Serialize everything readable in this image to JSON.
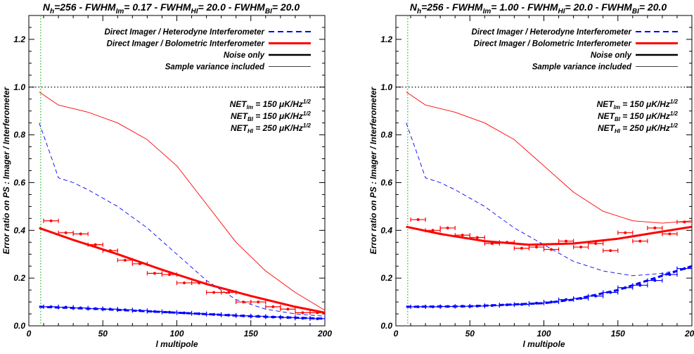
{
  "chart_data": [
    {
      "type": "line",
      "title": "N_h=256 - FWHM_Im= 0.17 - FWHM_HI= 20.0 - FWHM_BI= 20.0",
      "title_parts": [
        {
          "t": "N",
          "s": 0
        },
        {
          "t": "h",
          "s": -1
        },
        {
          "t": "=256 - FWHM",
          "s": 0
        },
        {
          "t": "Im",
          "s": -1
        },
        {
          "t": "= 0.17 - FWHM",
          "s": 0
        },
        {
          "t": "HI",
          "s": -1
        },
        {
          "t": "= 20.0 - FWHM",
          "s": 0
        },
        {
          "t": "BI",
          "s": -1
        },
        {
          "t": "= 20.0",
          "s": 0
        }
      ],
      "xlabel": "l multipole",
      "ylabel": "Error ratio on PS : Imager / Interferometer",
      "xlim": [
        0,
        200
      ],
      "ylim": [
        0,
        1.3
      ],
      "xticks": [
        0,
        50,
        100,
        150,
        200
      ],
      "xtick_labels": [
        "0",
        "50",
        "100",
        "150",
        "200"
      ],
      "yticks": [
        0.0,
        0.2,
        0.4,
        0.6,
        0.8,
        1.0,
        1.2
      ],
      "ytick_labels": [
        "0.0",
        "0.2",
        "0.4",
        "0.6",
        "0.8",
        "1.0",
        "1.2"
      ],
      "legend_position": "top-right",
      "legend": [
        {
          "label": "Direct Imager / Heterodyne Interferometer",
          "color": "#0000ff",
          "style": "dashed",
          "width": 2
        },
        {
          "label": "Direct Imager / Bolometric Interferometer",
          "color": "#ff0000",
          "style": "solid",
          "width": 3
        },
        {
          "label": "Noise only",
          "color": "#000000",
          "style": "solid",
          "width": 2.5
        },
        {
          "label": "Sample variance included",
          "color": "#000000",
          "style": "solid",
          "width": 0.8
        }
      ],
      "net_lines": [
        [
          {
            "t": "NET",
            "s": 0
          },
          {
            "t": "Im",
            "s": -1
          },
          {
            "t": " = 150 μK/Hz",
            "s": 0
          },
          {
            "t": "1/2",
            "s": 1
          }
        ],
        [
          {
            "t": "NET",
            "s": 0
          },
          {
            "t": "BI",
            "s": -1
          },
          {
            "t": " = 150 μK/Hz",
            "s": 0
          },
          {
            "t": "1/2",
            "s": 1
          }
        ],
        [
          {
            "t": "NET",
            "s": 0
          },
          {
            "t": "HI",
            "s": -1
          },
          {
            "t": " = 250 μK/Hz",
            "s": 0
          },
          {
            "t": "1/2",
            "s": 1
          }
        ]
      ],
      "reference_lines": {
        "hline_y": 1.0,
        "vline_x": 8
      },
      "series": [
        {
          "kind": "line",
          "color": "#ff0000",
          "width": 0.9,
          "dash": false,
          "x": [
            7,
            20,
            40,
            60,
            80,
            100,
            120,
            140,
            160,
            180,
            200
          ],
          "y": [
            0.98,
            0.925,
            0.895,
            0.85,
            0.78,
            0.67,
            0.51,
            0.35,
            0.23,
            0.14,
            0.065
          ]
        },
        {
          "kind": "line",
          "color": "#0000ff",
          "width": 0.9,
          "dash": true,
          "x": [
            7,
            15,
            20,
            30,
            40,
            60,
            80,
            100,
            120,
            140,
            160,
            180,
            200
          ],
          "y": [
            0.85,
            0.71,
            0.62,
            0.6,
            0.57,
            0.5,
            0.41,
            0.3,
            0.19,
            0.11,
            0.07,
            0.05,
            0.04
          ]
        },
        {
          "kind": "line",
          "color": "#ff0000",
          "width": 3,
          "dash": false,
          "x": [
            7,
            30,
            60,
            90,
            120,
            150,
            180,
            200
          ],
          "y": [
            0.41,
            0.36,
            0.3,
            0.235,
            0.175,
            0.125,
            0.08,
            0.055
          ]
        },
        {
          "kind": "line",
          "color": "#0000ff",
          "width": 3,
          "dash": true,
          "x": [
            7,
            50,
            100,
            150,
            200
          ],
          "y": [
            0.08,
            0.07,
            0.055,
            0.04,
            0.03
          ]
        },
        {
          "kind": "errorbar",
          "color": "#ff0000",
          "halfwidth": 5,
          "x": [
            15,
            25,
            35,
            45,
            55,
            65,
            75,
            85,
            95,
            105,
            115,
            125,
            135,
            145,
            155,
            165,
            175,
            185,
            195
          ],
          "y": [
            0.44,
            0.39,
            0.385,
            0.34,
            0.315,
            0.275,
            0.26,
            0.22,
            0.215,
            0.18,
            0.18,
            0.14,
            0.14,
            0.1,
            0.1,
            0.08,
            0.07,
            0.055,
            0.055
          ]
        },
        {
          "kind": "errorbar",
          "color": "#0000ff",
          "halfwidth": 5,
          "x": [
            15,
            25,
            35,
            45,
            55,
            65,
            75,
            85,
            95,
            105,
            115,
            125,
            135,
            145,
            155,
            165,
            175,
            185,
            195
          ],
          "y": [
            0.08,
            0.078,
            0.075,
            0.072,
            0.07,
            0.067,
            0.064,
            0.06,
            0.057,
            0.054,
            0.051,
            0.048,
            0.045,
            0.042,
            0.04,
            0.037,
            0.035,
            0.032,
            0.03
          ]
        }
      ]
    },
    {
      "type": "line",
      "title": "N_h=256 - FWHM_Im= 1.00 - FWHM_HI= 20.0 - FWHM_BI= 20.0",
      "title_parts": [
        {
          "t": "N",
          "s": 0
        },
        {
          "t": "h",
          "s": -1
        },
        {
          "t": "=256 - FWHM",
          "s": 0
        },
        {
          "t": "Im",
          "s": -1
        },
        {
          "t": "= 1.00 - FWHM",
          "s": 0
        },
        {
          "t": "HI",
          "s": -1
        },
        {
          "t": "= 20.0 - FWHM",
          "s": 0
        },
        {
          "t": "BI",
          "s": -1
        },
        {
          "t": "= 20.0",
          "s": 0
        }
      ],
      "xlabel": "l multipole",
      "ylabel": "Error ratio on PS : Imager / Interferometer",
      "xlim": [
        0,
        200
      ],
      "ylim": [
        0,
        1.3
      ],
      "xticks": [
        0,
        50,
        100,
        150,
        200
      ],
      "xtick_labels": [
        "0",
        "50",
        "100",
        "150",
        "200"
      ],
      "yticks": [
        0.0,
        0.2,
        0.4,
        0.6,
        0.8,
        1.0,
        1.2
      ],
      "ytick_labels": [
        "0.0",
        "0.2",
        "0.4",
        "0.6",
        "0.8",
        "1.0",
        "1.2"
      ],
      "legend_position": "top-right",
      "legend": [
        {
          "label": "Direct Imager / Heterodyne Interferometer",
          "color": "#0000ff",
          "style": "dashed",
          "width": 2
        },
        {
          "label": "Direct Imager / Bolometric Interferometer",
          "color": "#ff0000",
          "style": "solid",
          "width": 3
        },
        {
          "label": "Noise only",
          "color": "#000000",
          "style": "solid",
          "width": 2.5
        },
        {
          "label": "Sample variance included",
          "color": "#000000",
          "style": "solid",
          "width": 0.8
        }
      ],
      "net_lines": [
        [
          {
            "t": "NET",
            "s": 0
          },
          {
            "t": "Im",
            "s": -1
          },
          {
            "t": " = 150 μK/Hz",
            "s": 0
          },
          {
            "t": "1/2",
            "s": 1
          }
        ],
        [
          {
            "t": "NET",
            "s": 0
          },
          {
            "t": "BI",
            "s": -1
          },
          {
            "t": " = 150 μK/Hz",
            "s": 0
          },
          {
            "t": "1/2",
            "s": 1
          }
        ],
        [
          {
            "t": "NET",
            "s": 0
          },
          {
            "t": "HI",
            "s": -1
          },
          {
            "t": " = 250 μK/Hz",
            "s": 0
          },
          {
            "t": "1/2",
            "s": 1
          }
        ]
      ],
      "reference_lines": {
        "hline_y": 1.0,
        "vline_x": 8
      },
      "series": [
        {
          "kind": "line",
          "color": "#ff0000",
          "width": 0.9,
          "dash": false,
          "x": [
            7,
            20,
            40,
            60,
            80,
            100,
            120,
            140,
            160,
            180,
            200
          ],
          "y": [
            0.98,
            0.925,
            0.895,
            0.85,
            0.78,
            0.67,
            0.56,
            0.48,
            0.44,
            0.43,
            0.44
          ]
        },
        {
          "kind": "line",
          "color": "#0000ff",
          "width": 0.9,
          "dash": true,
          "x": [
            7,
            15,
            20,
            30,
            40,
            60,
            80,
            100,
            120,
            140,
            160,
            180,
            200
          ],
          "y": [
            0.85,
            0.71,
            0.62,
            0.6,
            0.57,
            0.5,
            0.41,
            0.34,
            0.27,
            0.23,
            0.21,
            0.22,
            0.245
          ]
        },
        {
          "kind": "line",
          "color": "#ff0000",
          "width": 3,
          "dash": false,
          "x": [
            7,
            30,
            60,
            90,
            120,
            150,
            180,
            200
          ],
          "y": [
            0.415,
            0.385,
            0.355,
            0.34,
            0.345,
            0.365,
            0.395,
            0.415
          ]
        },
        {
          "kind": "line",
          "color": "#0000ff",
          "width": 3,
          "dash": true,
          "x": [
            7,
            50,
            100,
            120,
            150,
            175,
            200
          ],
          "y": [
            0.08,
            0.082,
            0.095,
            0.11,
            0.15,
            0.2,
            0.25
          ]
        },
        {
          "kind": "errorbar",
          "color": "#ff0000",
          "halfwidth": 5,
          "x": [
            15,
            25,
            35,
            45,
            55,
            65,
            75,
            85,
            95,
            105,
            115,
            125,
            135,
            145,
            155,
            165,
            175,
            185,
            195
          ],
          "y": [
            0.445,
            0.4,
            0.41,
            0.38,
            0.37,
            0.345,
            0.35,
            0.325,
            0.33,
            0.32,
            0.355,
            0.33,
            0.345,
            0.315,
            0.39,
            0.355,
            0.41,
            0.385,
            0.435
          ]
        },
        {
          "kind": "errorbar",
          "color": "#0000ff",
          "halfwidth": 5,
          "x": [
            15,
            25,
            35,
            45,
            55,
            65,
            75,
            85,
            95,
            105,
            115,
            125,
            135,
            145,
            155,
            165,
            175,
            185,
            195
          ],
          "y": [
            0.08,
            0.08,
            0.081,
            0.082,
            0.083,
            0.085,
            0.088,
            0.09,
            0.095,
            0.1,
            0.11,
            0.115,
            0.125,
            0.14,
            0.16,
            0.17,
            0.19,
            0.215,
            0.24
          ]
        }
      ]
    }
  ]
}
